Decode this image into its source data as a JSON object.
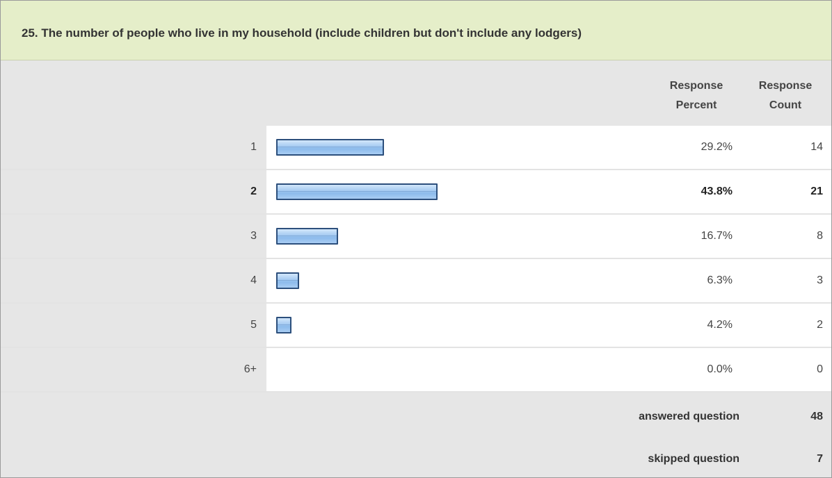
{
  "question": {
    "title": "25. The number of people who live in my household (include children but don't include any lodgers)"
  },
  "columns": {
    "percent_line1": "Response",
    "percent_line2": "Percent",
    "count_line1": "Response",
    "count_line2": "Count"
  },
  "chart_data": {
    "type": "bar",
    "orientation": "horizontal",
    "title": "25. The number of people who live in my household (include children but don't include any lodgers)",
    "categories": [
      "1",
      "2",
      "3",
      "4",
      "5",
      "6+"
    ],
    "percent_labels": [
      "29.2%",
      "43.8%",
      "16.7%",
      "6.3%",
      "4.2%",
      "0.0%"
    ],
    "percent_values": [
      29.2,
      43.8,
      16.7,
      6.3,
      4.2,
      0.0
    ],
    "counts": [
      "14",
      "21",
      "8",
      "3",
      "2",
      "0"
    ],
    "highlighted_index": 1,
    "xlim": [
      0,
      100
    ],
    "bar_color": "#a9cdf3",
    "bar_border_color": "#2c4f7c",
    "grid": false
  },
  "summary": {
    "answered_label": "answered question",
    "answered_value": "48",
    "skipped_label": "skipped question",
    "skipped_value": "7"
  },
  "colors": {
    "title_background": "#e5eec9",
    "panel_background": "#e6e6e6",
    "cell_background": "#ffffff"
  }
}
